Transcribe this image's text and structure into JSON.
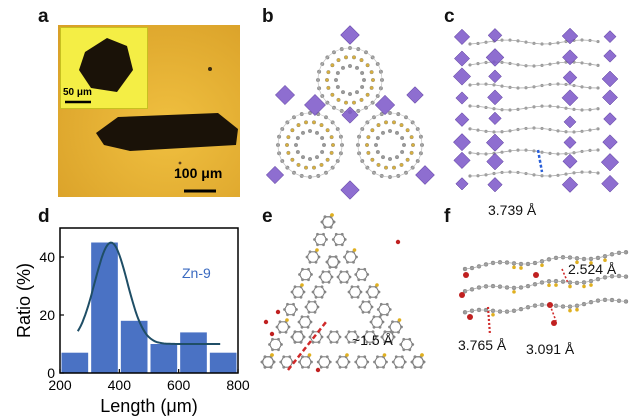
{
  "panels": {
    "a": {
      "label": "a",
      "inset_scale": "50 μm",
      "main_scale": "100 μm",
      "colors": {
        "background": "#e6b030",
        "inset_background": "#f4ee45",
        "crystal": "#1a1208"
      }
    },
    "b": {
      "label": "b",
      "colors": {
        "polyhedra": "#7a55c8",
        "atoms": "#9a9a9a",
        "linker": "#d8b040"
      }
    },
    "c": {
      "label": "c",
      "distance": "3.739 Å",
      "colors": {
        "polyhedra": "#7a55c8",
        "dash": "#2a5fd8"
      }
    },
    "d": {
      "label": "d",
      "chart_data": {
        "type": "bar",
        "bins": [
          200,
          300,
          400,
          500,
          600,
          700,
          800
        ],
        "categories": [
          "200-300",
          "300-400",
          "400-500",
          "500-600",
          "600-700",
          "700-800"
        ],
        "values": [
          7,
          45,
          18,
          10,
          14,
          7
        ],
        "series": [
          {
            "name": "Zn-9",
            "values": [
              7,
              45,
              18,
              10,
              14,
              7
            ]
          }
        ],
        "fit_curve": "gaussian",
        "xlabel": "Length (μm)",
        "ylabel": "Ratio (%)",
        "xlim": [
          200,
          800
        ],
        "ylim": [
          0,
          50
        ],
        "xticks": [
          200,
          400,
          600,
          800
        ],
        "yticks": [
          0,
          20,
          40
        ],
        "grid": false,
        "legend": "top-right",
        "colors": {
          "bar": "#4a72c4",
          "curve": "#1f4e66"
        }
      }
    },
    "e": {
      "label": "e",
      "distance": "~1.5 Å",
      "colors": {
        "dash": "#d02a2a"
      }
    },
    "f": {
      "label": "f",
      "distances": [
        "2.524 Å",
        "3.765 Å",
        "3.091 Å"
      ],
      "colors": {
        "dash": "#d02a2a",
        "oxygen": "#c02020"
      }
    }
  }
}
